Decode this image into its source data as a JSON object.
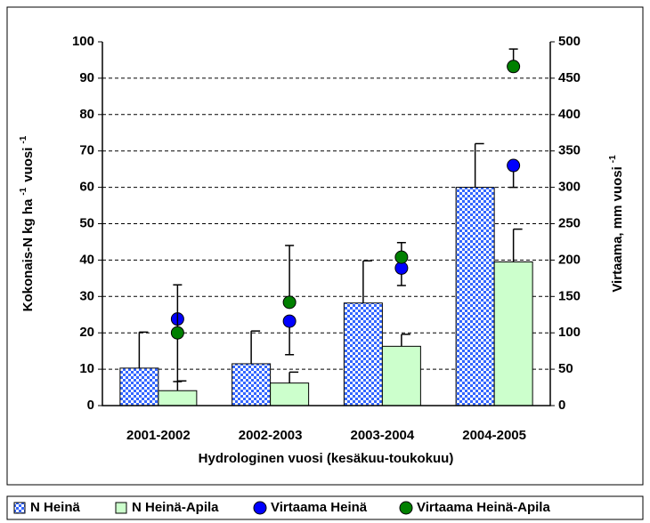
{
  "chart_data": {
    "type": "bar",
    "categories": [
      "2001-2002",
      "2002-2003",
      "2003-2004",
      "2004-2005"
    ],
    "xlabel": "Hydrologinen vuosi (kesäkuu-toukokuu)",
    "ylabel_parts": [
      "Kokonais-N kg ha",
      "-1",
      "vuosi",
      "-1"
    ],
    "y2label_parts": [
      "Virtaama, mm vuosi",
      "-1"
    ],
    "ylim": [
      0,
      100
    ],
    "yticks": [
      0,
      10,
      20,
      30,
      40,
      50,
      60,
      70,
      80,
      90,
      100
    ],
    "y2lim": [
      0,
      500
    ],
    "y2ticks": [
      0,
      50,
      100,
      150,
      200,
      250,
      300,
      350,
      400,
      450,
      500
    ],
    "grid": true,
    "series": [
      {
        "name": "N Heinä",
        "type": "bar",
        "color": "#3366ff",
        "pattern": "checker",
        "values": [
          10.3,
          11.5,
          28.2,
          60.0
        ],
        "errors": [
          9.9,
          9.0,
          11.6,
          12.0
        ]
      },
      {
        "name": "N Heinä-Apila",
        "type": "bar",
        "color": "#ccffcc",
        "values": [
          4.1,
          6.2,
          16.3,
          39.5
        ],
        "errors": [
          2.7,
          3.0,
          3.3,
          9.0
        ]
      },
      {
        "name": "Virtaama Heinä",
        "type": "scatter",
        "axis": "y2",
        "color": "#0000ff",
        "values": [
          119,
          116,
          189,
          330
        ],
        "errors_down": [
          86,
          46,
          24,
          30
        ]
      },
      {
        "name": "Virtaama Heinä-Apila",
        "type": "scatter",
        "axis": "y2",
        "color": "#008000",
        "values": [
          100,
          142,
          204,
          466
        ],
        "errors_up": [
          66,
          78,
          20,
          24
        ]
      }
    ]
  }
}
